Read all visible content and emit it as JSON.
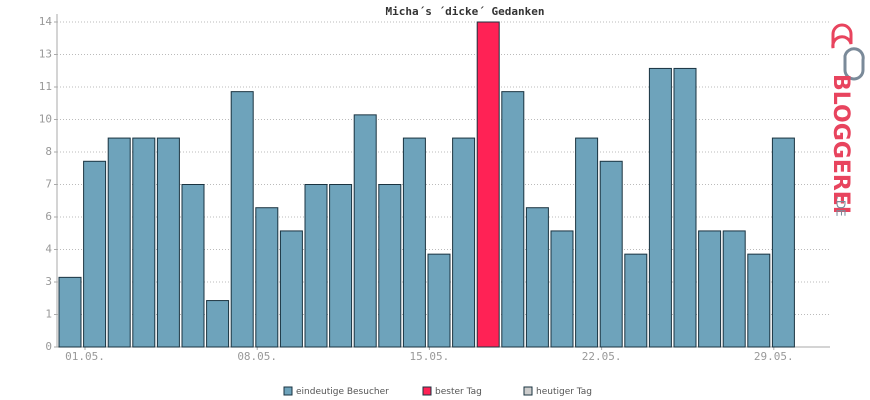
{
  "chart_data": {
    "type": "bar",
    "title": "Micha´s ´dicke´ Gedanken",
    "categories": [
      "01.05.",
      null,
      null,
      null,
      null,
      null,
      null,
      "08.05.",
      null,
      null,
      null,
      null,
      null,
      null,
      "15.05.",
      null,
      null,
      null,
      null,
      null,
      null,
      "22.05.",
      null,
      null,
      null,
      null,
      null,
      null,
      "29.05.",
      null
    ],
    "series": [
      {
        "name": "eindeutige Besucher",
        "color": "#6ea3bb",
        "values": [
          3,
          8,
          9,
          9,
          9,
          7,
          2,
          11,
          6,
          5,
          7,
          7,
          10,
          7,
          9,
          4,
          9,
          null,
          11,
          6,
          5,
          9,
          8,
          4,
          12,
          12,
          5,
          5,
          4,
          9
        ]
      },
      {
        "name": "bester Tag",
        "color": "#ff2255",
        "values": [
          null,
          null,
          null,
          null,
          null,
          null,
          null,
          null,
          null,
          null,
          null,
          null,
          null,
          null,
          null,
          null,
          null,
          14,
          null,
          null,
          null,
          null,
          null,
          null,
          null,
          null,
          null,
          null,
          null,
          null
        ]
      },
      {
        "name": "heutiger Tag",
        "color": "#cccccc",
        "values": [
          null,
          null,
          null,
          null,
          null,
          null,
          null,
          null,
          null,
          null,
          null,
          null,
          null,
          null,
          null,
          null,
          null,
          null,
          null,
          null,
          null,
          null,
          null,
          null,
          null,
          null,
          null,
          null,
          null,
          null
        ]
      }
    ],
    "ylim": [
      0,
      14
    ],
    "yticks": [
      0,
      {
        "value": 1.4,
        "label": "1"
      },
      {
        "value": 2.8,
        "label": "3"
      },
      {
        "value": 4.2,
        "label": "4"
      },
      {
        "value": 5.6,
        "label": "6"
      },
      7,
      {
        "value": 8.4,
        "label": "8"
      },
      {
        "value": 9.8,
        "label": "10"
      },
      {
        "value": 11.2,
        "label": "11"
      },
      {
        "value": 12.6,
        "label": "13"
      },
      14
    ],
    "grid": true
  },
  "logo": {
    "name": "BLOGGEREI",
    "suffix": ".DE"
  }
}
